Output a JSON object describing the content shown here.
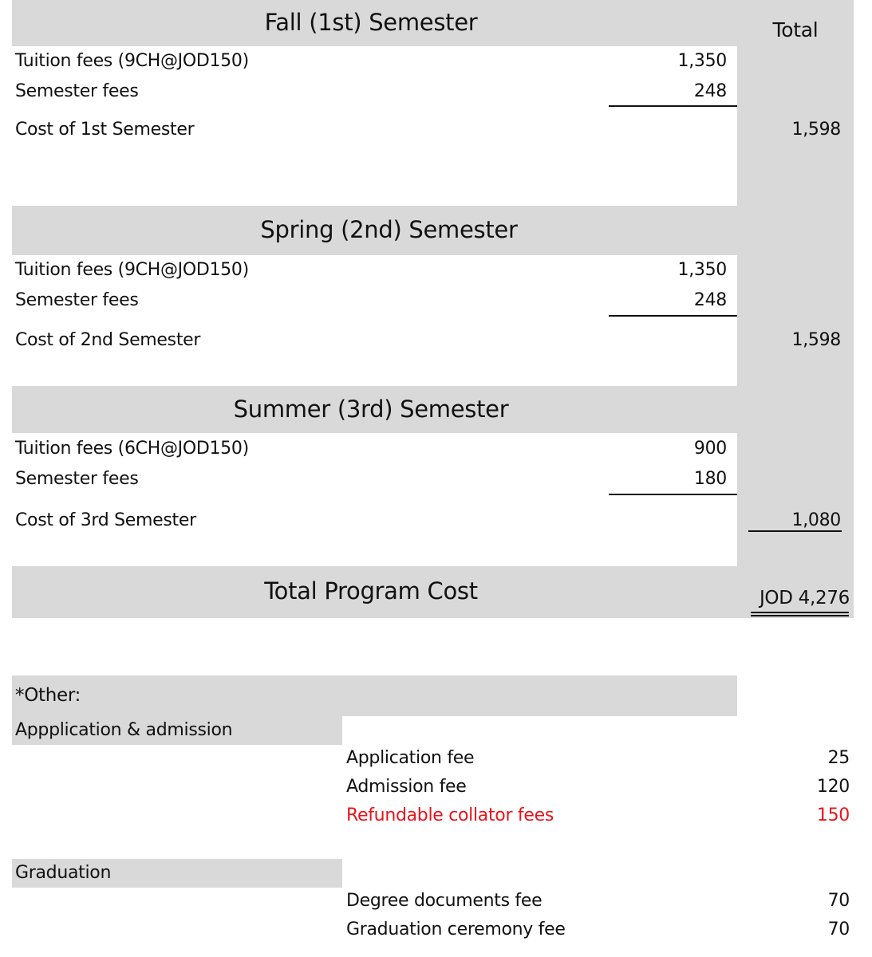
{
  "total_header": "Total",
  "semesters": [
    {
      "title": "Fall (1st) Semester",
      "tuition_label": "Tuition fees (9CH@JOD150)",
      "tuition": "1,350",
      "fees_label": "Semester fees",
      "fees": "248",
      "cost_label": "Cost of 1st Semester",
      "cost": "1,598"
    },
    {
      "title": "Spring (2nd) Semester",
      "tuition_label": "Tuition fees (9CH@JOD150)",
      "tuition": "1,350",
      "fees_label": "Semester fees",
      "fees": "248",
      "cost_label": "Cost of 2nd Semester",
      "cost": "1,598"
    },
    {
      "title": "Summer (3rd) Semester",
      "tuition_label": "Tuition fees (6CH@JOD150)",
      "tuition": "900",
      "fees_label": "Semester fees",
      "fees": "180",
      "cost_label": "Cost of 3rd Semester",
      "cost": "1,080"
    }
  ],
  "program_total": {
    "label": "Total Program Cost",
    "value": "JOD 4,276"
  },
  "other": {
    "title": "*Other:",
    "application": {
      "title": "Appplication & admission",
      "items": [
        {
          "label": "Application  fee",
          "value": "25"
        },
        {
          "label": "Admission fee",
          "value": "120"
        },
        {
          "label": "Refundable collator fees",
          "value": "150",
          "color": "#e8141b"
        }
      ]
    },
    "graduation": {
      "title": "Graduation",
      "items": [
        {
          "label": "Degree documents fee",
          "value": "70"
        },
        {
          "label": "Graduation ceremony fee",
          "value": "70"
        }
      ]
    }
  }
}
